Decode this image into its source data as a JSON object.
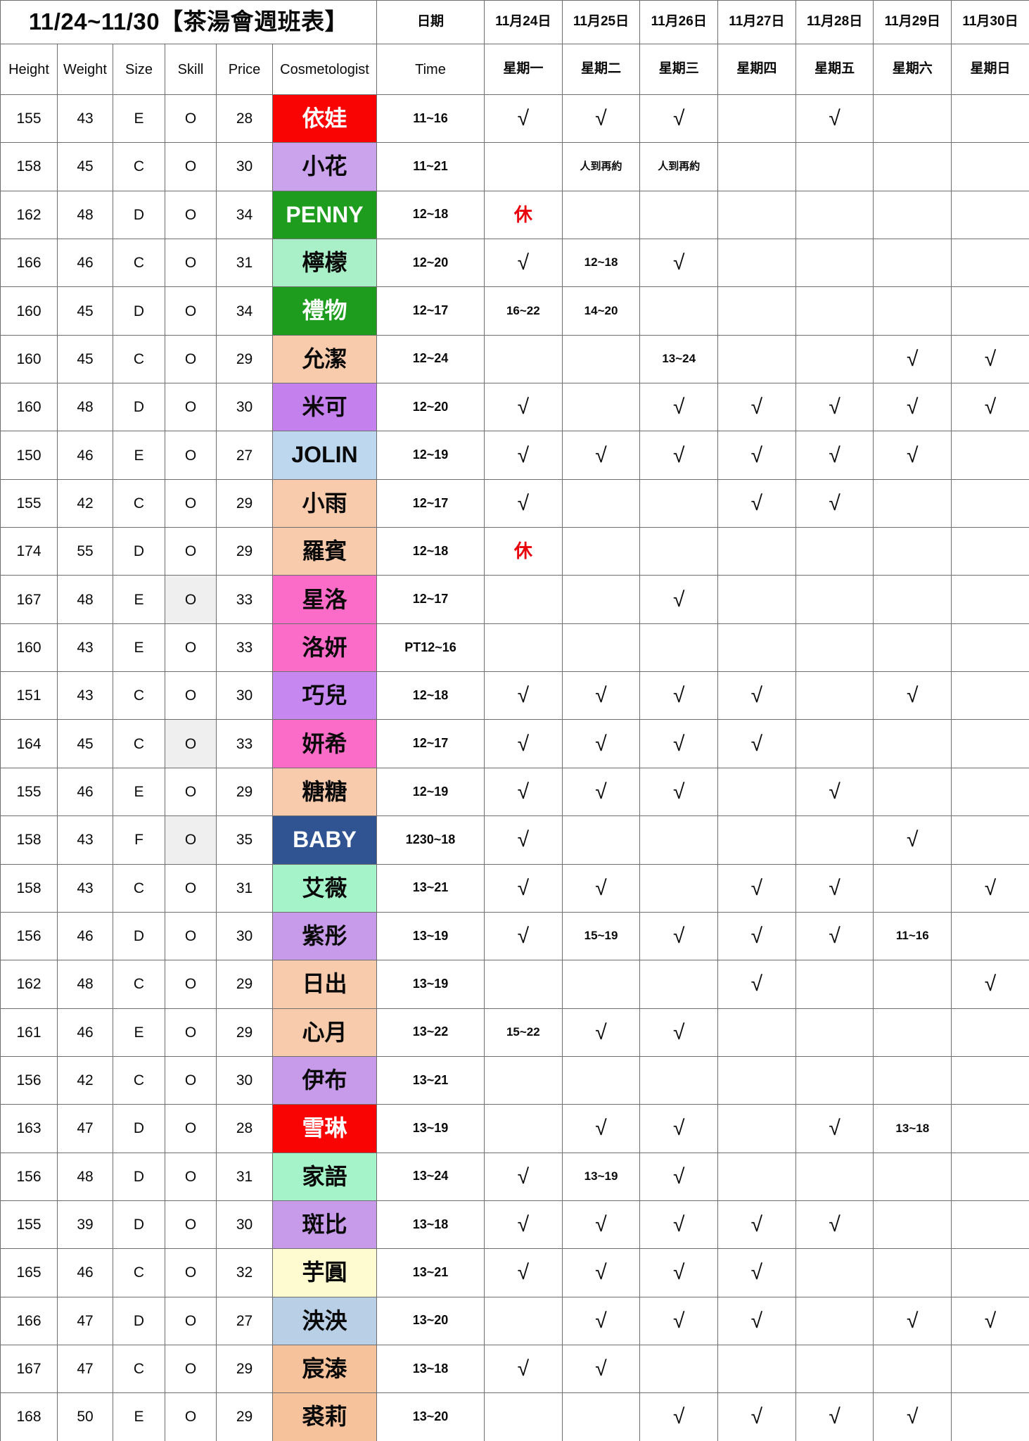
{
  "title": "11/24~11/30【茶湯會週班表】",
  "symbols": {
    "check": "√",
    "rest": "休"
  },
  "header": {
    "date_label": "日期",
    "time_label": "Time",
    "columns": [
      "Height",
      "Weight",
      "Size",
      "Skill",
      "Price",
      "Cosmetologist"
    ],
    "days": [
      {
        "date": "11月24日",
        "weekday": "星期一"
      },
      {
        "date": "11月25日",
        "weekday": "星期二"
      },
      {
        "date": "11月26日",
        "weekday": "星期三"
      },
      {
        "date": "11月27日",
        "weekday": "星期四"
      },
      {
        "date": "11月28日",
        "weekday": "星期五"
      },
      {
        "date": "11月29日",
        "weekday": "星期六"
      },
      {
        "date": "11月30日",
        "weekday": "星期日"
      }
    ]
  },
  "colors": {
    "grid_line": "#6e6e6e",
    "rest_red": "#e8000d",
    "skill_highlight_gray": "#efefef"
  },
  "rows": [
    {
      "height": "155",
      "weight": "43",
      "size": "E",
      "skill": "O",
      "price": "28",
      "name": "依娃",
      "name_bg": "#fa0303",
      "name_fg": "#ffffff",
      "skill_bg": "",
      "time": "11~16",
      "days": [
        "√",
        "√",
        "√",
        "",
        "√",
        "",
        ""
      ]
    },
    {
      "height": "158",
      "weight": "45",
      "size": "C",
      "skill": "O",
      "price": "30",
      "name": "小花",
      "name_bg": "#cba2ec",
      "name_fg": "#0a0a0a",
      "skill_bg": "",
      "time": "11~21",
      "days": [
        "",
        "人到再約",
        "人到再約",
        "",
        "",
        "",
        ""
      ]
    },
    {
      "height": "162",
      "weight": "48",
      "size": "D",
      "skill": "O",
      "price": "34",
      "name": "PENNY",
      "name_bg": "#1e9c1e",
      "name_fg": "#ffffff",
      "skill_bg": "",
      "time": "12~18",
      "days": [
        "休",
        "",
        "",
        "",
        "",
        "",
        ""
      ]
    },
    {
      "height": "166",
      "weight": "46",
      "size": "C",
      "skill": "O",
      "price": "31",
      "name": "檸檬",
      "name_bg": "#a9f0c8",
      "name_fg": "#0a0a0a",
      "skill_bg": "",
      "time": "12~20",
      "days": [
        "√",
        "12~18",
        "√",
        "",
        "",
        "",
        ""
      ]
    },
    {
      "height": "160",
      "weight": "45",
      "size": "D",
      "skill": "O",
      "price": "34",
      "name": "禮物",
      "name_bg": "#1e9c1e",
      "name_fg": "#ffffff",
      "skill_bg": "",
      "time": "12~17",
      "days": [
        "16~22",
        "14~20",
        "",
        "",
        "",
        "",
        ""
      ]
    },
    {
      "height": "160",
      "weight": "45",
      "size": "C",
      "skill": "O",
      "price": "29",
      "name": "允潔",
      "name_bg": "#f8cbad",
      "name_fg": "#0a0a0a",
      "skill_bg": "",
      "time": "12~24",
      "days": [
        "",
        "",
        "13~24",
        "",
        "",
        "√",
        "√"
      ]
    },
    {
      "height": "160",
      "weight": "48",
      "size": "D",
      "skill": "O",
      "price": "30",
      "name": "米可",
      "name_bg": "#c480ec",
      "name_fg": "#0a0a0a",
      "skill_bg": "",
      "time": "12~20",
      "days": [
        "√",
        "",
        "√",
        "√",
        "√",
        "√",
        "√"
      ]
    },
    {
      "height": "150",
      "weight": "46",
      "size": "E",
      "skill": "O",
      "price": "27",
      "name": "JOLIN",
      "name_bg": "#bdd7ee",
      "name_fg": "#0a0a0a",
      "skill_bg": "",
      "time": "12~19",
      "days": [
        "√",
        "√",
        "√",
        "√",
        "√",
        "√",
        ""
      ]
    },
    {
      "height": "155",
      "weight": "42",
      "size": "C",
      "skill": "O",
      "price": "29",
      "name": "小雨",
      "name_bg": "#f8cbad",
      "name_fg": "#0a0a0a",
      "skill_bg": "",
      "time": "12~17",
      "days": [
        "√",
        "",
        "",
        "√",
        "√",
        "",
        ""
      ]
    },
    {
      "height": "174",
      "weight": "55",
      "size": "D",
      "skill": "O",
      "price": "29",
      "name": "羅賓",
      "name_bg": "#f8cbad",
      "name_fg": "#0a0a0a",
      "skill_bg": "",
      "time": "12~18",
      "days": [
        "休",
        "",
        "",
        "",
        "",
        "",
        ""
      ]
    },
    {
      "height": "167",
      "weight": "48",
      "size": "E",
      "skill": "O",
      "price": "33",
      "name": "星洛",
      "name_bg": "#fb6cc8",
      "name_fg": "#0a0a0a",
      "skill_bg": "#efefef",
      "time": "12~17",
      "days": [
        "",
        "",
        "√",
        "",
        "",
        "",
        ""
      ]
    },
    {
      "height": "160",
      "weight": "43",
      "size": "E",
      "skill": "O",
      "price": "33",
      "name": "洛妍",
      "name_bg": "#fb6cc8",
      "name_fg": "#0a0a0a",
      "skill_bg": "",
      "time": "PT12~16",
      "days": [
        "",
        "",
        "",
        "",
        "",
        "",
        ""
      ]
    },
    {
      "height": "151",
      "weight": "43",
      "size": "C",
      "skill": "O",
      "price": "30",
      "name": "巧兒",
      "name_bg": "#c688f0",
      "name_fg": "#0a0a0a",
      "skill_bg": "",
      "time": "12~18",
      "days": [
        "√",
        "√",
        "√",
        "√",
        "",
        "√",
        ""
      ]
    },
    {
      "height": "164",
      "weight": "45",
      "size": "C",
      "skill": "O",
      "price": "33",
      "name": "妍希",
      "name_bg": "#fb6cc8",
      "name_fg": "#0a0a0a",
      "skill_bg": "#efefef",
      "time": "12~17",
      "days": [
        "√",
        "√",
        "√",
        "√",
        "",
        "",
        ""
      ]
    },
    {
      "height": "155",
      "weight": "46",
      "size": "E",
      "skill": "O",
      "price": "29",
      "name": "糖糖",
      "name_bg": "#f8cbad",
      "name_fg": "#0a0a0a",
      "skill_bg": "",
      "time": "12~19",
      "days": [
        "√",
        "√",
        "√",
        "",
        "√",
        "",
        ""
      ]
    },
    {
      "height": "158",
      "weight": "43",
      "size": "F",
      "skill": "O",
      "price": "35",
      "name": "BABY",
      "name_bg": "#2f5491",
      "name_fg": "#ffffff",
      "skill_bg": "#efefef",
      "time": "1230~18",
      "days": [
        "√",
        "",
        "",
        "",
        "",
        "√",
        ""
      ]
    },
    {
      "height": "158",
      "weight": "43",
      "size": "C",
      "skill": "O",
      "price": "31",
      "name": "艾薇",
      "name_bg": "#a5f3c9",
      "name_fg": "#0a0a0a",
      "skill_bg": "",
      "time": "13~21",
      "days": [
        "√",
        "√",
        "",
        "√",
        "√",
        "",
        "√"
      ]
    },
    {
      "height": "156",
      "weight": "46",
      "size": "D",
      "skill": "O",
      "price": "30",
      "name": "紫彤",
      "name_bg": "#c79be9",
      "name_fg": "#0a0a0a",
      "skill_bg": "",
      "time": "13~19",
      "days": [
        "√",
        "15~19",
        "√",
        "√",
        "√",
        "11~16",
        ""
      ]
    },
    {
      "height": "162",
      "weight": "48",
      "size": "C",
      "skill": "O",
      "price": "29",
      "name": "日出",
      "name_bg": "#f8cbad",
      "name_fg": "#0a0a0a",
      "skill_bg": "",
      "time": "13~19",
      "days": [
        "",
        "",
        "",
        "√",
        "",
        "",
        "√"
      ]
    },
    {
      "height": "161",
      "weight": "46",
      "size": "E",
      "skill": "O",
      "price": "29",
      "name": "心月",
      "name_bg": "#f8cbad",
      "name_fg": "#0a0a0a",
      "skill_bg": "",
      "time": "13~22",
      "days": [
        "15~22",
        "√",
        "√",
        "",
        "",
        "",
        ""
      ]
    },
    {
      "height": "156",
      "weight": "42",
      "size": "C",
      "skill": "O",
      "price": "30",
      "name": "伊布",
      "name_bg": "#c79be9",
      "name_fg": "#0a0a0a",
      "skill_bg": "",
      "time": "13~21",
      "days": [
        "",
        "",
        "",
        "",
        "",
        "",
        ""
      ]
    },
    {
      "height": "163",
      "weight": "47",
      "size": "D",
      "skill": "O",
      "price": "28",
      "name": "雪琳",
      "name_bg": "#fa0303",
      "name_fg": "#ffffff",
      "skill_bg": "",
      "time": "13~19",
      "days": [
        "",
        "√",
        "√",
        "",
        "√",
        "13~18",
        ""
      ]
    },
    {
      "height": "156",
      "weight": "48",
      "size": "D",
      "skill": "O",
      "price": "31",
      "name": "家語",
      "name_bg": "#a5f3c9",
      "name_fg": "#0a0a0a",
      "skill_bg": "",
      "time": "13~24",
      "days": [
        "√",
        "13~19",
        "√",
        "",
        "",
        "",
        ""
      ]
    },
    {
      "height": "155",
      "weight": "39",
      "size": "D",
      "skill": "O",
      "price": "30",
      "name": "斑比",
      "name_bg": "#c79be9",
      "name_fg": "#0a0a0a",
      "skill_bg": "",
      "time": "13~18",
      "days": [
        "√",
        "√",
        "√",
        "√",
        "√",
        "",
        ""
      ]
    },
    {
      "height": "165",
      "weight": "46",
      "size": "C",
      "skill": "O",
      "price": "32",
      "name": "芋圓",
      "name_bg": "#fefbd0",
      "name_fg": "#0a0a0a",
      "skill_bg": "",
      "time": "13~21",
      "days": [
        "√",
        "√",
        "√",
        "√",
        "",
        "",
        ""
      ]
    },
    {
      "height": "166",
      "weight": "47",
      "size": "D",
      "skill": "O",
      "price": "27",
      "name": "泱泱",
      "name_bg": "#b9cfe5",
      "name_fg": "#0a0a0a",
      "skill_bg": "",
      "time": "13~20",
      "days": [
        "",
        "√",
        "√",
        "√",
        "",
        "√",
        "√"
      ]
    },
    {
      "height": "167",
      "weight": "47",
      "size": "C",
      "skill": "O",
      "price": "29",
      "name": "宸溙",
      "name_bg": "#f5c29c",
      "name_fg": "#0a0a0a",
      "skill_bg": "",
      "time": "13~18",
      "days": [
        "√",
        "√",
        "",
        "",
        "",
        "",
        ""
      ]
    },
    {
      "height": "168",
      "weight": "50",
      "size": "E",
      "skill": "O",
      "price": "29",
      "name": "裘莉",
      "name_bg": "#f5c29c",
      "name_fg": "#0a0a0a",
      "skill_bg": "",
      "time": "13~20",
      "days": [
        "",
        "",
        "√",
        "√",
        "√",
        "√",
        ""
      ]
    }
  ]
}
